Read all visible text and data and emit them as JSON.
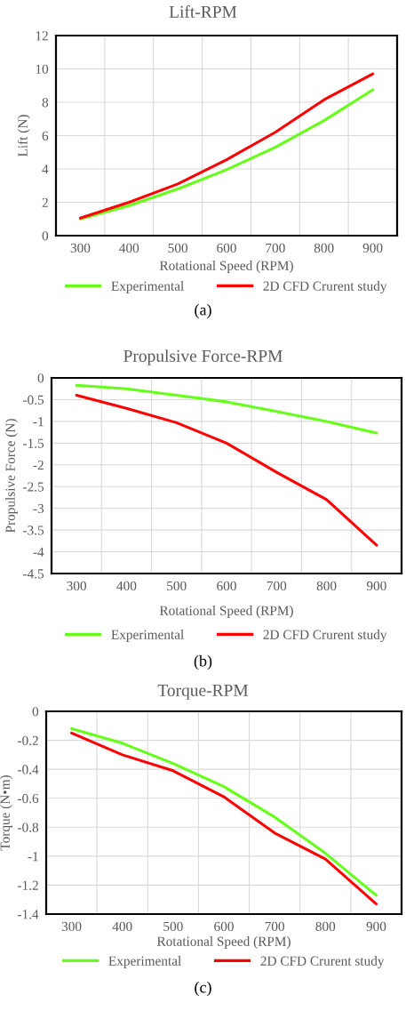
{
  "chart_data": [
    {
      "type": "line",
      "title": "Lift-RPM",
      "xlabel": "Rotational Speed (RPM)",
      "ylabel": "Lift (N)",
      "categories": [
        "300",
        "400",
        "500",
        "600",
        "700",
        "800",
        "900"
      ],
      "series": [
        {
          "name": "Experimental",
          "color": "#66ff1a",
          "values": [
            1.0,
            1.8,
            2.8,
            3.95,
            5.3,
            6.9,
            8.75
          ]
        },
        {
          "name": "2D CFD Crurent study",
          "color": "#ff0000",
          "values": [
            1.05,
            2.0,
            3.1,
            4.55,
            6.2,
            8.15,
            9.7
          ]
        }
      ],
      "ylim": [
        0,
        12
      ],
      "yticks": [
        0,
        2,
        4,
        6,
        8,
        10,
        12
      ],
      "grid": true,
      "legend": "bottom",
      "annotations": [
        "(a)"
      ]
    },
    {
      "type": "line",
      "title": "Propulsive Force-RPM",
      "xlabel": "Rotational Speed (RPM)",
      "ylabel": "Propulsive Force (N)",
      "categories": [
        "300",
        "400",
        "500",
        "600",
        "700",
        "800",
        "900"
      ],
      "series": [
        {
          "name": "Experimental",
          "color": "#66ff1a",
          "values": [
            -0.17,
            -0.25,
            -0.4,
            -0.55,
            -0.77,
            -1.0,
            -1.27
          ]
        },
        {
          "name": "2D CFD Crurent study",
          "color": "#ff0000",
          "values": [
            -0.4,
            -0.7,
            -1.03,
            -1.5,
            -2.17,
            -2.8,
            -3.85
          ]
        }
      ],
      "ylim": [
        -4.5,
        0
      ],
      "yticks": [
        -4.5,
        -4,
        -3.5,
        -3,
        -2.5,
        -2,
        -1.5,
        -1,
        -0.5,
        0
      ],
      "grid": true,
      "legend": "bottom",
      "annotations": [
        "(b)"
      ]
    },
    {
      "type": "line",
      "title": "Torque-RPM",
      "xlabel": "Rotational Speed (RPM)",
      "ylabel": "Torque (N•m)",
      "categories": [
        "300",
        "400",
        "500",
        "600",
        "700",
        "800",
        "900"
      ],
      "series": [
        {
          "name": "Experimental",
          "color": "#66ff1a",
          "values": [
            -0.12,
            -0.22,
            -0.36,
            -0.52,
            -0.73,
            -0.98,
            -1.27
          ]
        },
        {
          "name": "2D CFD Crurent study",
          "color": "#ff0000",
          "values": [
            -0.15,
            -0.3,
            -0.41,
            -0.59,
            -0.84,
            -1.02,
            -1.33
          ]
        }
      ],
      "ylim": [
        -1.4,
        0
      ],
      "yticks": [
        -1.4,
        -1.2,
        -1,
        -0.8,
        -0.6,
        -0.4,
        -0.2,
        0
      ],
      "grid": true,
      "legend": "bottom",
      "annotations": [
        "(c)"
      ]
    }
  ]
}
